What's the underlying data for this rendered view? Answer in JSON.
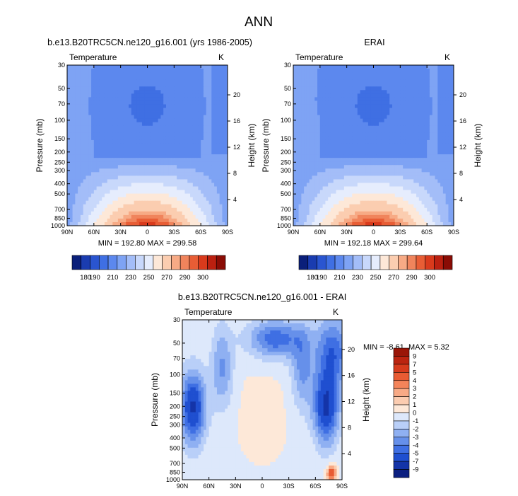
{
  "figure_title": "ANN",
  "chart_data": [
    {
      "type": "heatmap",
      "title": "b.e13.B20TRC5CN.ne120_g16.001 (yrs 1986-2005)",
      "left_label": "Temperature",
      "right_label": "K",
      "ylabel": "Pressure (mb)",
      "y2label": "Height (km)",
      "x_ticks": [
        "90N",
        "60N",
        "30N",
        "0",
        "30S",
        "60S",
        "90S"
      ],
      "y_ticks": [
        "30",
        "50",
        "70",
        "100",
        "150",
        "200",
        "250",
        "300",
        "400",
        "500",
        "700",
        "850",
        "1000"
      ],
      "y2_ticks": [
        "20",
        "16",
        "12",
        "8",
        "4"
      ],
      "stats": "MIN = 192.80  MAX = 299.58",
      "colorbar_labels": [
        "180",
        "190",
        "210",
        "230",
        "250",
        "270",
        "290",
        "300"
      ],
      "colorbar_colors": [
        "#0a1f7a",
        "#1a3cb0",
        "#2a55d0",
        "#3f6fe3",
        "#5c88ee",
        "#7ea3f4",
        "#a3bdf8",
        "#c8d8fb",
        "#e6edfd",
        "#fde8d8",
        "#fbcdb0",
        "#f7aa85",
        "#f0845c",
        "#e85d35",
        "#d93a1c",
        "#bb2010",
        "#8a0c05"
      ],
      "field": "model"
    },
    {
      "type": "heatmap",
      "title": "ERAI",
      "left_label": "Temperature",
      "right_label": "K",
      "ylabel": "Pressure (mb)",
      "y2label": "Height (km)",
      "x_ticks": [
        "90N",
        "60N",
        "30N",
        "0",
        "30S",
        "60S",
        "90S"
      ],
      "y_ticks": [
        "30",
        "50",
        "70",
        "100",
        "150",
        "200",
        "250",
        "300",
        "400",
        "500",
        "700",
        "850",
        "1000"
      ],
      "y2_ticks": [
        "20",
        "16",
        "12",
        "8",
        "4"
      ],
      "stats": "MIN = 192.18  MAX = 299.64",
      "colorbar_labels": [
        "180",
        "190",
        "210",
        "230",
        "250",
        "270",
        "290",
        "300"
      ],
      "colorbar_colors": [
        "#0a1f7a",
        "#1a3cb0",
        "#2a55d0",
        "#3f6fe3",
        "#5c88ee",
        "#7ea3f4",
        "#a3bdf8",
        "#c8d8fb",
        "#e6edfd",
        "#fde8d8",
        "#fbcdb0",
        "#f7aa85",
        "#f0845c",
        "#e85d35",
        "#d93a1c",
        "#bb2010",
        "#8a0c05"
      ],
      "field": "obs"
    },
    {
      "type": "heatmap",
      "title": "b.e13.B20TRC5CN.ne120_g16.001 - ERAI",
      "left_label": "Temperature",
      "right_label": "K",
      "ylabel": "Pressure (mb)",
      "y2label": "Height (km)",
      "x_ticks": [
        "90N",
        "60N",
        "30N",
        "0",
        "30S",
        "60S",
        "90S"
      ],
      "y_ticks": [
        "30",
        "50",
        "70",
        "100",
        "150",
        "200",
        "250",
        "300",
        "400",
        "500",
        "700",
        "850",
        "1000"
      ],
      "y2_ticks": [
        "20",
        "16",
        "12",
        "8",
        "4"
      ],
      "stats_min": "MIN =  -8.61",
      "stats_max": "MAX =   5.32",
      "colorbar_labels": [
        "9",
        "7",
        "5",
        "4",
        "3",
        "2",
        "1",
        "0",
        "-1",
        "-2",
        "-3",
        "-4",
        "-5",
        "-7",
        "-9"
      ],
      "colorbar_colors": [
        "#9a1608",
        "#bb2410",
        "#d63a1c",
        "#e85b33",
        "#f4845a",
        "#f8aa86",
        "#fbccb0",
        "#fde8d8",
        "#dde8fb",
        "#b9cff8",
        "#8fb0f2",
        "#6690ea",
        "#3f6fe3",
        "#1f4fd0",
        "#1434a8",
        "#0b1f80"
      ],
      "field": "diff"
    }
  ]
}
